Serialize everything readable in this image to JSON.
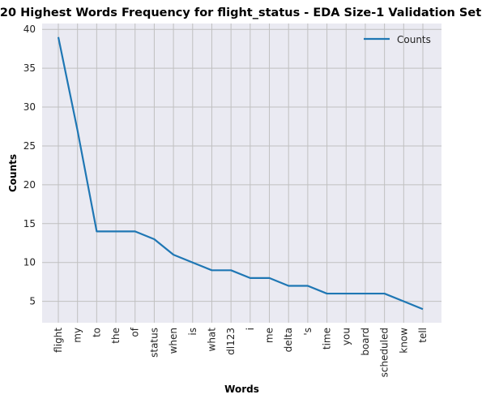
{
  "chart_data": {
    "type": "line",
    "title": "20 Highest Words Frequency for flight_status - EDA Size-1 Validation Set",
    "xlabel": "Words",
    "ylabel": "Counts",
    "categories": [
      "flight",
      "my",
      "to",
      "the",
      "of",
      "status",
      "when",
      "is",
      "what",
      "dl123",
      "i",
      "me",
      "delta",
      "'s",
      "time",
      "you",
      "board",
      "scheduled",
      "know",
      "tell"
    ],
    "series": [
      {
        "name": "Counts",
        "values": [
          39,
          27,
          14,
          14,
          14,
          13,
          11,
          10,
          9,
          9,
          8,
          8,
          7,
          7,
          6,
          6,
          6,
          6,
          5,
          4
        ]
      }
    ],
    "yticks": [
      5,
      10,
      15,
      20,
      25,
      30,
      35,
      40
    ],
    "ylim": [
      2.25,
      40.75
    ],
    "grid": true,
    "legend_position": "top-right",
    "colors": {
      "line": "#1f77b4",
      "plot_bg": "#eaeaf2",
      "grid": "#c0c0c0"
    }
  }
}
